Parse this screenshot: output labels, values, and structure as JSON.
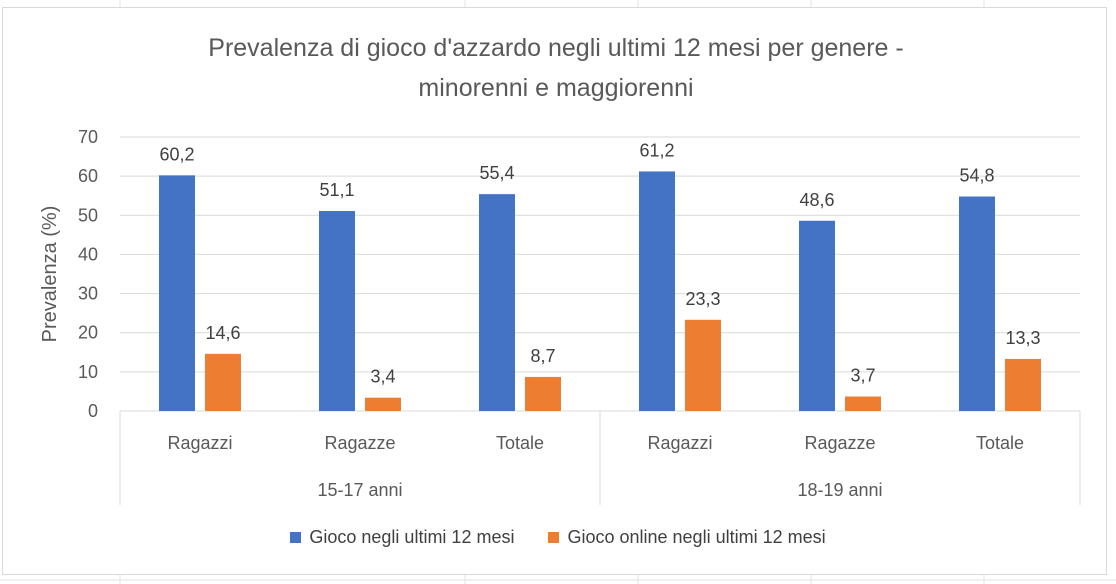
{
  "chart_data": {
    "type": "bar",
    "title_lines": [
      "Prevalenza di gioco d'azzardo negli ultimi 12 mesi per genere -",
      "minorenni e maggiorenni"
    ],
    "ylabel": "Prevalenza (%)",
    "ylim": [
      0,
      70
    ],
    "yticks": [
      "0",
      "10",
      "20",
      "30",
      "40",
      "50",
      "60",
      "70"
    ],
    "grid": true,
    "legend_position": "bottom",
    "groups": [
      {
        "label": "15-17 anni",
        "categories": [
          "Ragazzi",
          "Ragazze",
          "Totale"
        ]
      },
      {
        "label": "18-19 anni",
        "categories": [
          "Ragazzi",
          "Ragazze",
          "Totale"
        ]
      }
    ],
    "categories": [
      "Ragazzi",
      "Ragazze",
      "Totale",
      "Ragazzi",
      "Ragazze",
      "Totale"
    ],
    "series": [
      {
        "name": "Gioco negli ultimi 12 mesi",
        "color": "#4472c4",
        "values": [
          60.2,
          51.1,
          55.4,
          61.2,
          48.6,
          54.8
        ],
        "labels": [
          "60,2",
          "51,1",
          "55,4",
          "61,2",
          "48,6",
          "54,8"
        ]
      },
      {
        "name": "Gioco online negli ultimi 12 mesi",
        "color": "#ed7d31",
        "values": [
          14.6,
          3.4,
          8.7,
          23.3,
          3.7,
          13.3
        ],
        "labels": [
          "14,6",
          "3,4",
          "8,7",
          "23,3",
          "3,7",
          "13,3"
        ]
      }
    ]
  }
}
